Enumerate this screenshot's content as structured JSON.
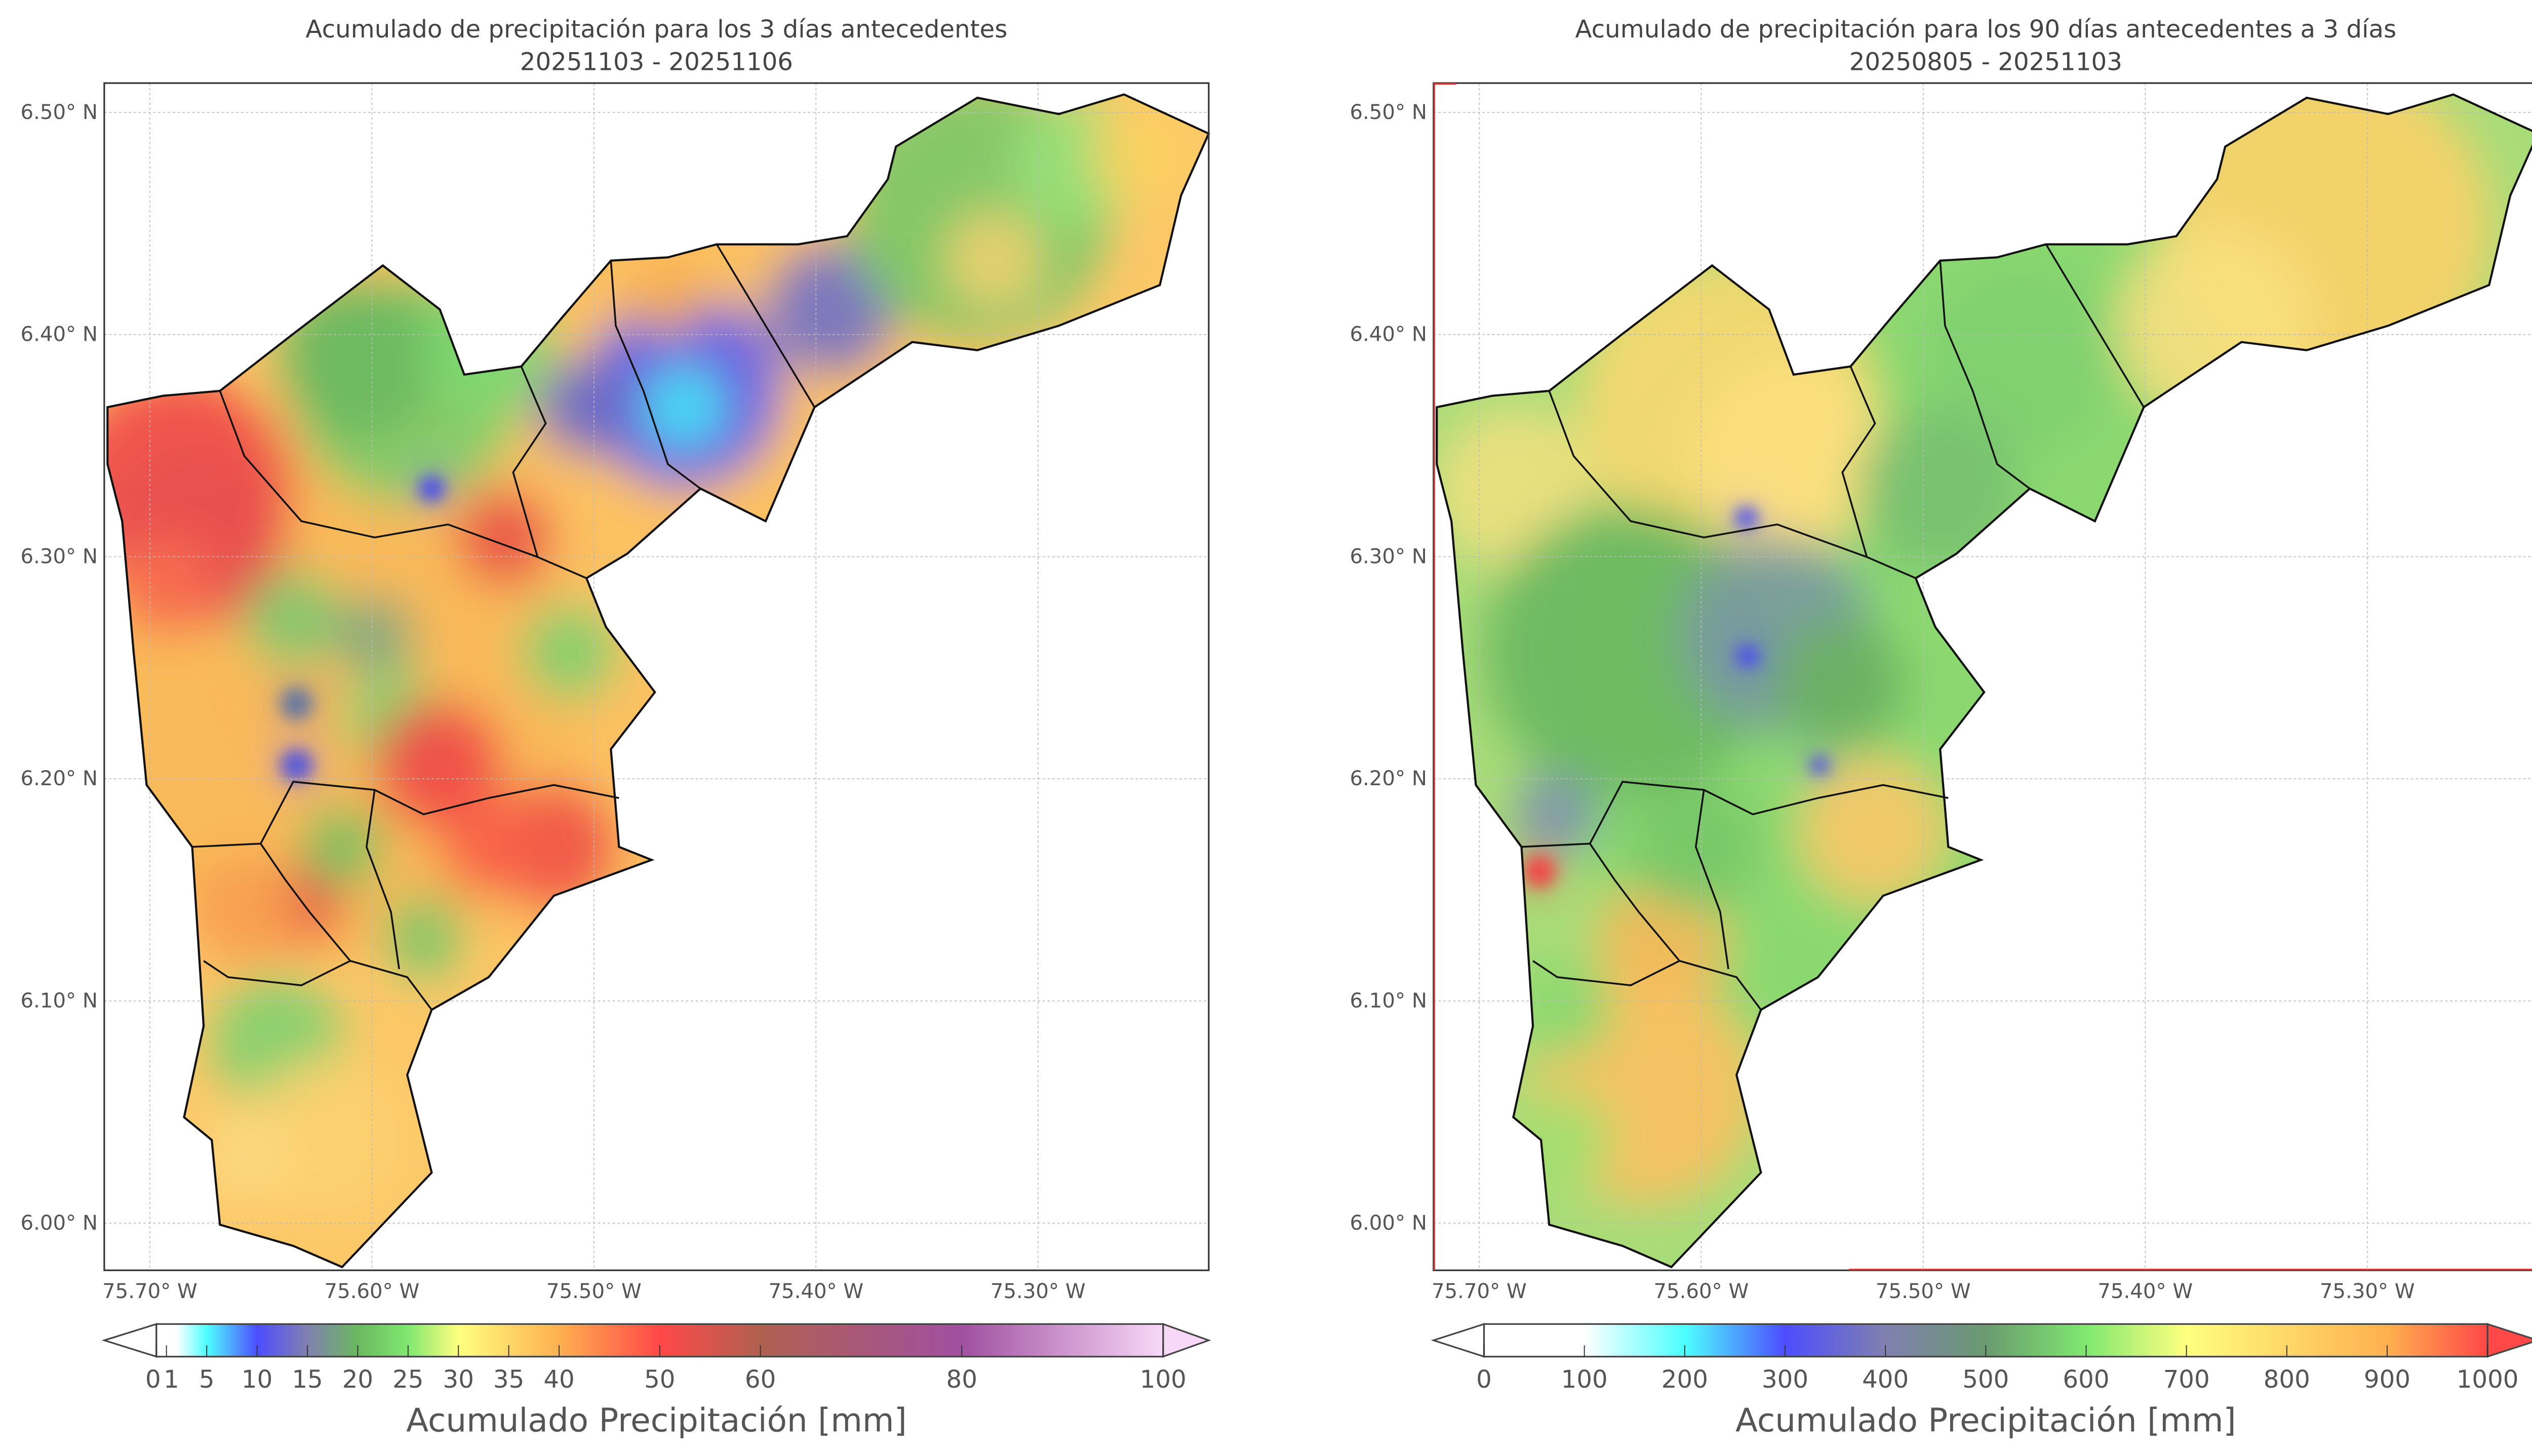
{
  "panels": [
    {
      "title_line1": "Acumulado de precipitación para los 3 días antecedentes",
      "title_line2": "20251103 - 20251106",
      "lon_ticks": [
        "75.70° W",
        "75.60° W",
        "75.50° W",
        "75.40° W",
        "75.30° W"
      ],
      "lat_ticks": [
        "6.50° N",
        "6.40° N",
        "6.30° N",
        "6.20° N",
        "6.10° N",
        "6.00° N"
      ],
      "colorbar": {
        "label": "Acumulado Precipitación [mm]",
        "ticks": [
          0,
          1,
          5,
          10,
          15,
          20,
          25,
          30,
          35,
          40,
          50,
          60,
          80,
          100
        ],
        "tick_labels": [
          "0",
          "1",
          "5",
          "10",
          "15",
          "20",
          "25",
          "30",
          "35",
          "40",
          "50",
          "60",
          "80",
          "100"
        ],
        "range": [
          0,
          100
        ],
        "extend": "both",
        "stops": [
          {
            "v": 0,
            "c": "#ffffff"
          },
          {
            "v": 2,
            "c": "#ffffff"
          },
          {
            "v": 5,
            "c": "#4dffff"
          },
          {
            "v": 10,
            "c": "#4d4dff"
          },
          {
            "v": 15,
            "c": "#8080b0"
          },
          {
            "v": 20,
            "c": "#6bb860"
          },
          {
            "v": 25,
            "c": "#80e870"
          },
          {
            "v": 30,
            "c": "#ffff80"
          },
          {
            "v": 40,
            "c": "#ffb050"
          },
          {
            "v": 50,
            "c": "#ff4848"
          },
          {
            "v": 60,
            "c": "#b06050"
          },
          {
            "v": 80,
            "c": "#a050a0"
          },
          {
            "v": 100,
            "c": "#f8d8f8"
          }
        ]
      }
    },
    {
      "title_line1": "Acumulado de precipitación para los 90 días antecedentes a 3 días",
      "title_line2": "20250805 - 20251103",
      "lon_ticks": [
        "75.70° W",
        "75.60° W",
        "75.50° W",
        "75.40° W",
        "75.30° W"
      ],
      "lat_ticks": [
        "6.50° N",
        "6.40° N",
        "6.30° N",
        "6.20° N",
        "6.10° N",
        "6.00° N"
      ],
      "colorbar": {
        "label": "Acumulado Precipitación [mm]",
        "ticks": [
          0,
          100,
          200,
          300,
          400,
          500,
          600,
          700,
          800,
          900,
          1000
        ],
        "tick_labels": [
          "0",
          "100",
          "200",
          "300",
          "400",
          "500",
          "600",
          "700",
          "800",
          "900",
          "1000"
        ],
        "range": [
          0,
          1000
        ],
        "extend": "both",
        "stops": [
          {
            "v": 0,
            "c": "#ffffff"
          },
          {
            "v": 100,
            "c": "#ffffff"
          },
          {
            "v": 200,
            "c": "#4dffff"
          },
          {
            "v": 300,
            "c": "#4d4dff"
          },
          {
            "v": 400,
            "c": "#8080b0"
          },
          {
            "v": 500,
            "c": "#6a9a70"
          },
          {
            "v": 600,
            "c": "#80e870"
          },
          {
            "v": 700,
            "c": "#ffff80"
          },
          {
            "v": 900,
            "c": "#ffb050"
          },
          {
            "v": 1000,
            "c": "#ff4848"
          }
        ]
      }
    }
  ]
}
